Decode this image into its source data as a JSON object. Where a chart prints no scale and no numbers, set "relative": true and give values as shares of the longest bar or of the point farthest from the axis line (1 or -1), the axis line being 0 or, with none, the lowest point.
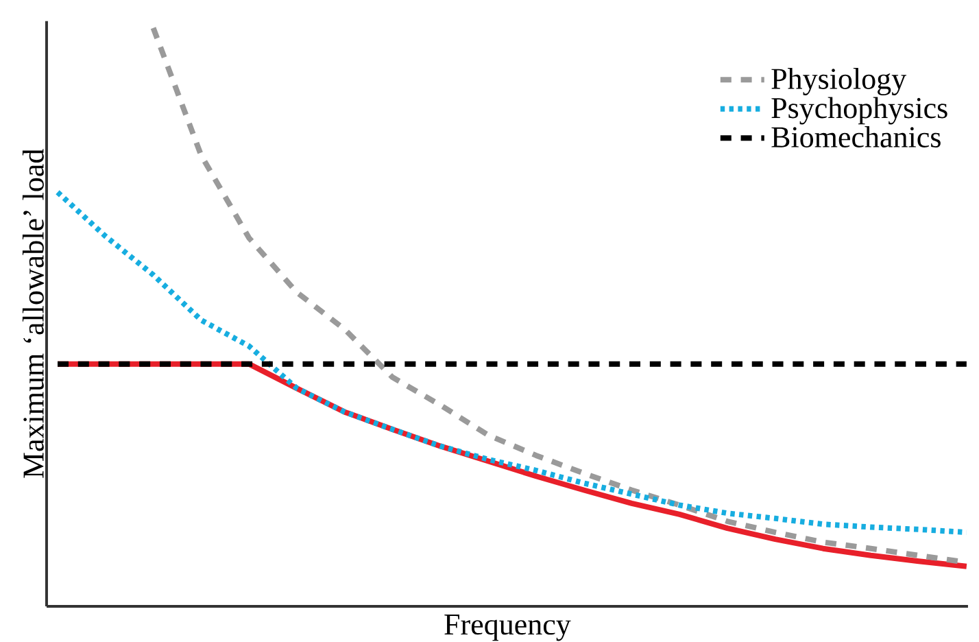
{
  "chart_data": {
    "type": "line",
    "relative": true,
    "xlabel": "Frequency",
    "ylabel": "Maximum ‘allowable’ load",
    "categories": [
      null,
      null,
      null,
      null,
      null,
      null,
      null,
      null,
      null,
      null,
      null,
      null,
      null,
      null,
      null,
      null,
      null,
      null,
      null,
      null
    ],
    "legend": "top right",
    "series": [
      {
        "color": "#e8202a",
        "line_style": "solid",
        "values": [
          0.419,
          0.419,
          0.419,
          0.419,
          0.419,
          0.377,
          0.336,
          0.306,
          0.277,
          0.251,
          0.225,
          0.201,
          0.178,
          0.159,
          0.135,
          0.116,
          0.1,
          0.088,
          0.078,
          0.069
        ]
      },
      {
        "name": "Physiology",
        "color": "#9a9a9a",
        "line_style": "dashed",
        "values": [
          null,
          null,
          1,
          0.78,
          0.637,
          0.543,
          0.479,
          0.396,
          0.348,
          0.296,
          0.261,
          0.23,
          0.201,
          0.175,
          0.147,
          0.128,
          0.111,
          0.1,
          0.088,
          0.076
        ]
      },
      {
        "name": "Psychophysics",
        "color": "#17ade0",
        "line_style": "dotted",
        "values": [
          0.716,
          0.64,
          0.573,
          0.495,
          0.45,
          0.377,
          0.336,
          0.306,
          0.277,
          0.254,
          0.235,
          0.213,
          0.194,
          0.175,
          0.161,
          0.152,
          0.142,
          0.137,
          0.133,
          0.128
        ]
      },
      {
        "name": "Biomechanics",
        "color": "#000000",
        "line_style": "dashed",
        "values": [
          0.419,
          0.419,
          0.419,
          0.419,
          0.419,
          0.419,
          0.419,
          0.419,
          0.419,
          0.419,
          0.419,
          0.419,
          0.419,
          0.419,
          0.419,
          0.419,
          0.419,
          0.419,
          0.419,
          0.419
        ]
      }
    ]
  }
}
